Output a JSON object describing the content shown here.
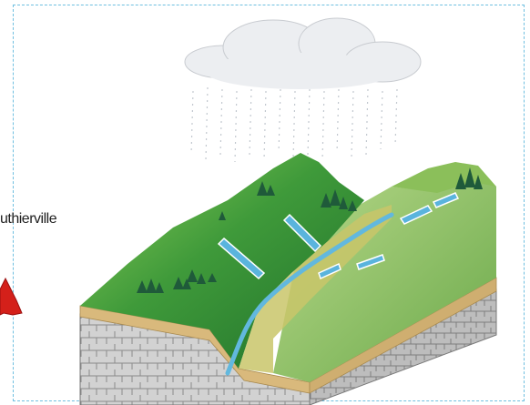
{
  "diagram": {
    "place_label": "uthierville",
    "colors": {
      "frame_border": "#6fbfe0",
      "cloud": "#e9ebee",
      "rain": "#bfc6cc",
      "hill_green": "#3f9a3a",
      "river_blue": "#62b8de",
      "soil_layer": "#d6b67a",
      "rock_layer": "#c9c9c9",
      "marker_red": "#d4201a"
    },
    "icons": [
      "cloud-icon",
      "rain-icon",
      "tree-icon",
      "runoff-arrow-icon",
      "red-marker-icon"
    ]
  }
}
